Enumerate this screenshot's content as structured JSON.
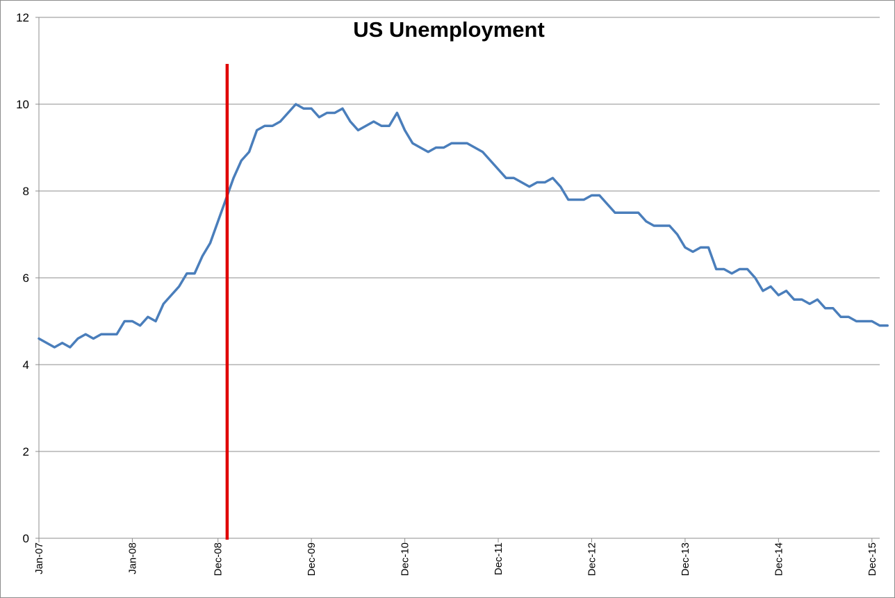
{
  "chart_data": {
    "type": "line",
    "title": "US Unemployment",
    "xlabel": "",
    "ylabel": "",
    "ylim": [
      0,
      12
    ],
    "y_ticks": [
      0,
      2,
      4,
      6,
      8,
      10,
      12
    ],
    "grid": "horizontal",
    "legend": "none",
    "x_tick_labels": [
      "Jan-07",
      "Jan-08",
      "Dec-08",
      "Dec-09",
      "Dec-10",
      "Dec-11",
      "Dec-12",
      "Dec-13",
      "Dec-14",
      "Dec-15"
    ],
    "x_tick_months": [
      "2007-01",
      "2008-01",
      "2008-12",
      "2009-12",
      "2010-12",
      "2011-12",
      "2012-12",
      "2013-12",
      "2014-12",
      "2015-12"
    ],
    "x_start": "2007-01",
    "x_end": "2016-01",
    "marker_line": {
      "x": "2009-01",
      "color": "#e00000",
      "label": ""
    },
    "series": [
      {
        "color": "#4a7ebb",
        "x_start": "2007-01",
        "values": [
          4.6,
          4.5,
          4.4,
          4.5,
          4.4,
          4.6,
          4.7,
          4.6,
          4.7,
          4.7,
          4.7,
          5.0,
          5.0,
          4.9,
          5.1,
          5.0,
          5.4,
          5.6,
          5.8,
          6.1,
          6.1,
          6.5,
          6.8,
          7.3,
          7.8,
          8.3,
          8.7,
          8.9,
          9.4,
          9.5,
          9.5,
          9.6,
          9.8,
          10.0,
          9.9,
          9.9,
          9.7,
          9.8,
          9.8,
          9.9,
          9.6,
          9.4,
          9.5,
          9.6,
          9.5,
          9.5,
          9.8,
          9.4,
          9.1,
          9.0,
          8.9,
          9.0,
          9.0,
          9.1,
          9.1,
          9.1,
          9.0,
          8.9,
          8.7,
          8.5,
          8.3,
          8.3,
          8.2,
          8.1,
          8.2,
          8.2,
          8.3,
          8.1,
          7.8,
          7.8,
          7.8,
          7.9,
          7.9,
          7.7,
          7.5,
          7.5,
          7.5,
          7.5,
          7.3,
          7.2,
          7.2,
          7.2,
          7.0,
          6.7,
          6.6,
          6.7,
          6.7,
          6.2,
          6.2,
          6.1,
          6.2,
          6.2,
          6.0,
          5.7,
          5.8,
          5.6,
          5.7,
          5.5,
          5.5,
          5.4,
          5.5,
          5.3,
          5.3,
          5.1,
          5.1,
          5.0,
          5.0,
          5.0,
          4.9,
          4.9
        ]
      }
    ]
  }
}
